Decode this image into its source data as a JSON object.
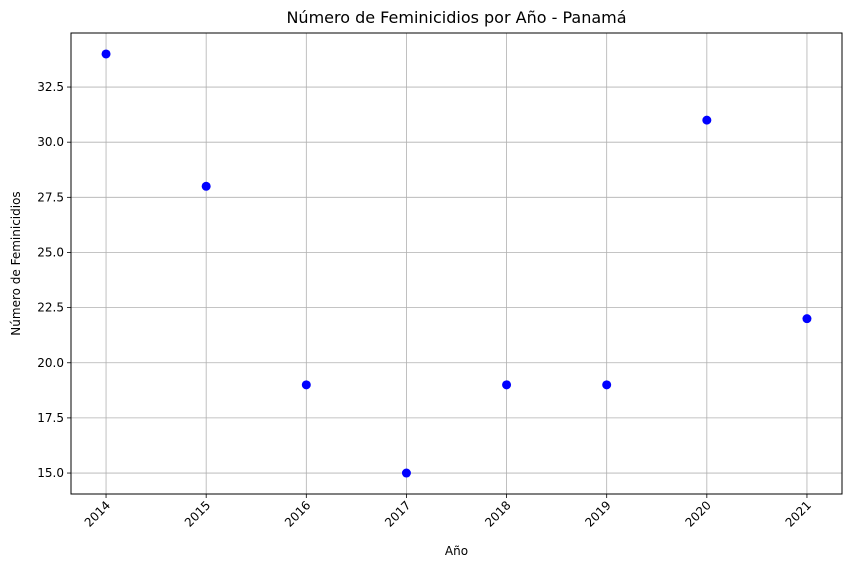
{
  "chart_data": {
    "type": "scatter",
    "title": "Número de Feminicidios por Año - Panamá",
    "xlabel": "Año",
    "ylabel": "Número de Feminicidios",
    "x": [
      2014,
      2015,
      2016,
      2017,
      2018,
      2019,
      2020,
      2021
    ],
    "y": [
      34,
      28,
      19,
      15,
      19,
      19,
      31,
      22
    ],
    "x_ticks": [
      "2014",
      "2015",
      "2016",
      "2017",
      "2018",
      "2019",
      "2020",
      "2021"
    ],
    "y_ticks": [
      "15.0",
      "17.5",
      "20.0",
      "22.5",
      "25.0",
      "27.5",
      "30.0",
      "32.5"
    ],
    "xlim": [
      2013.65,
      2021.35
    ],
    "ylim": [
      14.05,
      34.95
    ],
    "grid": true,
    "marker_color": "#0000ff",
    "grid_color": "#b0b0b0"
  }
}
